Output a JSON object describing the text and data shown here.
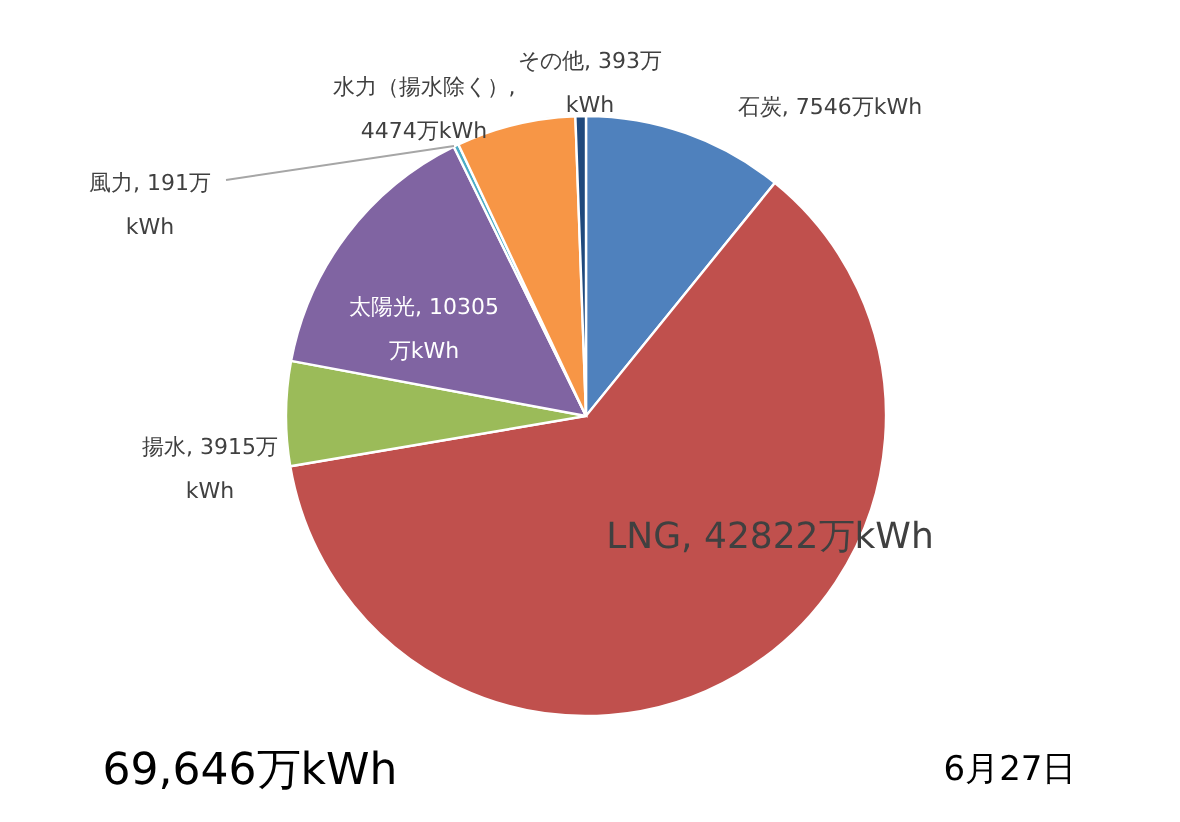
{
  "chart_data": {
    "type": "pie",
    "categories": [
      "石炭",
      "LNG",
      "揚水",
      "太陽光",
      "風力",
      "水力（揚水除く）",
      "その他"
    ],
    "values": [
      7546,
      42822,
      3915,
      10305,
      191,
      4474,
      393
    ],
    "colors": [
      "#4f81bd",
      "#c0504d",
      "#9bbb59",
      "#8064a2",
      "#4bacc6",
      "#f79646",
      "#1f497d"
    ],
    "value_labels": [
      "7546万kWh",
      "42822万kWh",
      "3915万\nkWh",
      "10305\n万kWh",
      "191万\nkWh",
      ",\n4474万kWh",
      "393万\nkWh"
    ],
    "annotations": [
      "69,646万kWh",
      "6月27日"
    ]
  }
}
